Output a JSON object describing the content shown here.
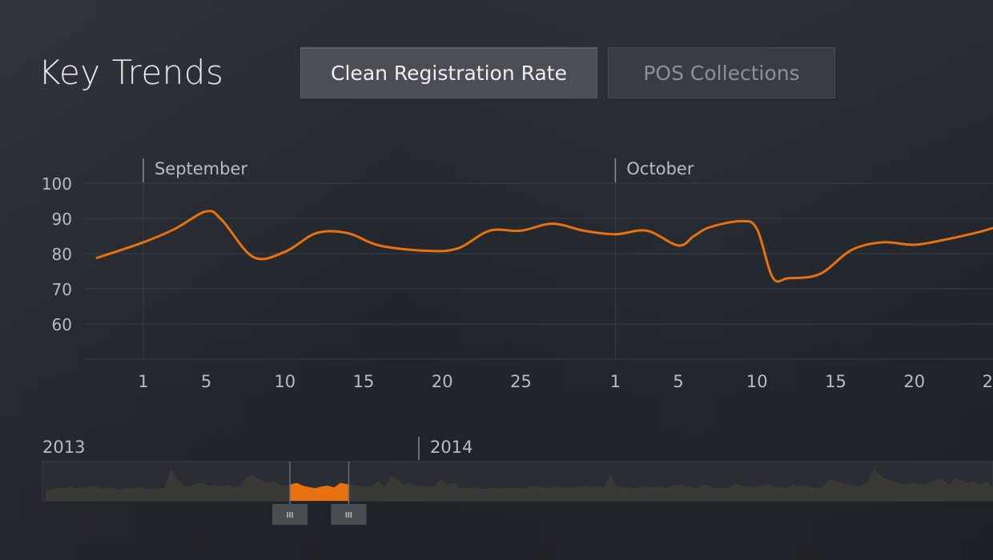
{
  "header": {
    "title": "Key Trends",
    "tabs": [
      {
        "label": "Clean Registration Rate",
        "active": true
      },
      {
        "label": "POS Collections",
        "active": false
      }
    ]
  },
  "colors": {
    "accent": "#e8720f",
    "grid": "#3a3e45",
    "text": "#b9bcc1",
    "overview_fill": "#3b3935"
  },
  "chart_data": [
    {
      "type": "line",
      "title": "",
      "xlabel": "",
      "ylabel": "",
      "months": [
        {
          "label": "September",
          "date": "2013-09-01"
        },
        {
          "label": "October",
          "date": "2013-10-01"
        }
      ],
      "yticks": [
        60,
        70,
        80,
        90,
        100
      ],
      "ylim": [
        50,
        100
      ],
      "xlim": [
        "2013-08-29",
        "2013-10-25"
      ],
      "xticks": [
        {
          "date": "2013-09-01",
          "label": "1"
        },
        {
          "date": "2013-09-05",
          "label": "5"
        },
        {
          "date": "2013-09-10",
          "label": "10"
        },
        {
          "date": "2013-09-15",
          "label": "15"
        },
        {
          "date": "2013-09-20",
          "label": "20"
        },
        {
          "date": "2013-09-25",
          "label": "25"
        },
        {
          "date": "2013-10-01",
          "label": "1"
        },
        {
          "date": "2013-10-05",
          "label": "5"
        },
        {
          "date": "2013-10-10",
          "label": "10"
        },
        {
          "date": "2013-10-15",
          "label": "15"
        },
        {
          "date": "2013-10-20",
          "label": "20"
        },
        {
          "date": "2013-10-25",
          "label": "25"
        }
      ],
      "grid": true,
      "series": [
        {
          "x": [
            "2013-08-29",
            "2013-09-01",
            "2013-09-03",
            "2013-09-05",
            "2013-09-06",
            "2013-09-08",
            "2013-09-10",
            "2013-09-12",
            "2013-09-14",
            "2013-09-16",
            "2013-09-19",
            "2013-09-21",
            "2013-09-23",
            "2013-09-25",
            "2013-09-27",
            "2013-09-29",
            "2013-10-01",
            "2013-10-03",
            "2013-10-05",
            "2013-10-06",
            "2013-10-07",
            "2013-10-09",
            "2013-10-10",
            "2013-10-11",
            "2013-10-12",
            "2013-10-14",
            "2013-10-16",
            "2013-10-18",
            "2013-10-20",
            "2013-10-22",
            "2013-10-24",
            "2013-10-25"
          ],
          "values": [
            78.7,
            83.2,
            87,
            92,
            89.5,
            79,
            80.5,
            85.8,
            85.8,
            82.3,
            80.8,
            81.5,
            86.5,
            86.5,
            88.5,
            86.5,
            85.5,
            86.5,
            82.3,
            85,
            87.5,
            89.2,
            87,
            73.2,
            73,
            74.2,
            81,
            83.2,
            82.5,
            84,
            86,
            87.3
          ]
        }
      ]
    },
    {
      "type": "area",
      "title": "",
      "years": [
        {
          "label": "2013",
          "date": "2013-01-01"
        },
        {
          "label": "2014",
          "date": "2014-01-01"
        }
      ],
      "selection": {
        "start": "2013-08-29",
        "end": "2013-10-25"
      },
      "values": [
        0.3,
        0.32,
        0.38,
        0.35,
        0.4,
        0.34,
        0.36,
        0.42,
        0.38,
        0.33,
        0.37,
        0.35,
        0.31,
        0.36,
        0.33,
        0.38,
        0.34,
        0.32,
        0.36,
        0.35,
        0.9,
        0.6,
        0.42,
        0.38,
        0.48,
        0.5,
        0.4,
        0.45,
        0.38,
        0.44,
        0.36,
        0.4,
        0.65,
        0.72,
        0.6,
        0.5,
        0.55,
        0.48,
        0.4,
        0.45,
        0.5,
        0.42,
        0.38,
        0.35,
        0.4,
        0.42,
        0.37,
        0.5,
        0.46,
        0.44,
        0.4,
        0.42,
        0.38,
        0.55,
        0.35,
        0.7,
        0.6,
        0.45,
        0.5,
        0.4,
        0.42,
        0.38,
        0.4,
        0.6,
        0.45,
        0.5,
        0.35,
        0.36,
        0.38,
        0.34,
        0.33,
        0.36,
        0.35,
        0.34,
        0.38,
        0.36,
        0.33,
        0.4,
        0.42,
        0.38,
        0.36,
        0.4,
        0.38,
        0.35,
        0.37,
        0.4,
        0.42,
        0.38,
        0.41,
        0.36,
        0.75,
        0.4,
        0.38,
        0.36,
        0.34,
        0.4,
        0.38,
        0.37,
        0.4,
        0.36,
        0.42,
        0.45,
        0.4,
        0.38,
        0.36,
        0.45,
        0.4,
        0.35,
        0.38,
        0.36,
        0.48,
        0.42,
        0.4,
        0.38,
        0.42,
        0.45,
        0.4,
        0.38,
        0.35,
        0.45,
        0.4,
        0.42,
        0.38,
        0.35,
        0.4,
        0.6,
        0.55,
        0.5,
        0.45,
        0.42,
        0.4,
        0.5,
        0.9,
        0.7,
        0.6,
        0.55,
        0.5,
        0.45,
        0.5,
        0.48,
        0.45,
        0.5,
        0.6,
        0.58,
        0.45,
        0.62,
        0.55,
        0.48,
        0.55,
        0.45,
        0.52,
        0.4
      ]
    }
  ]
}
